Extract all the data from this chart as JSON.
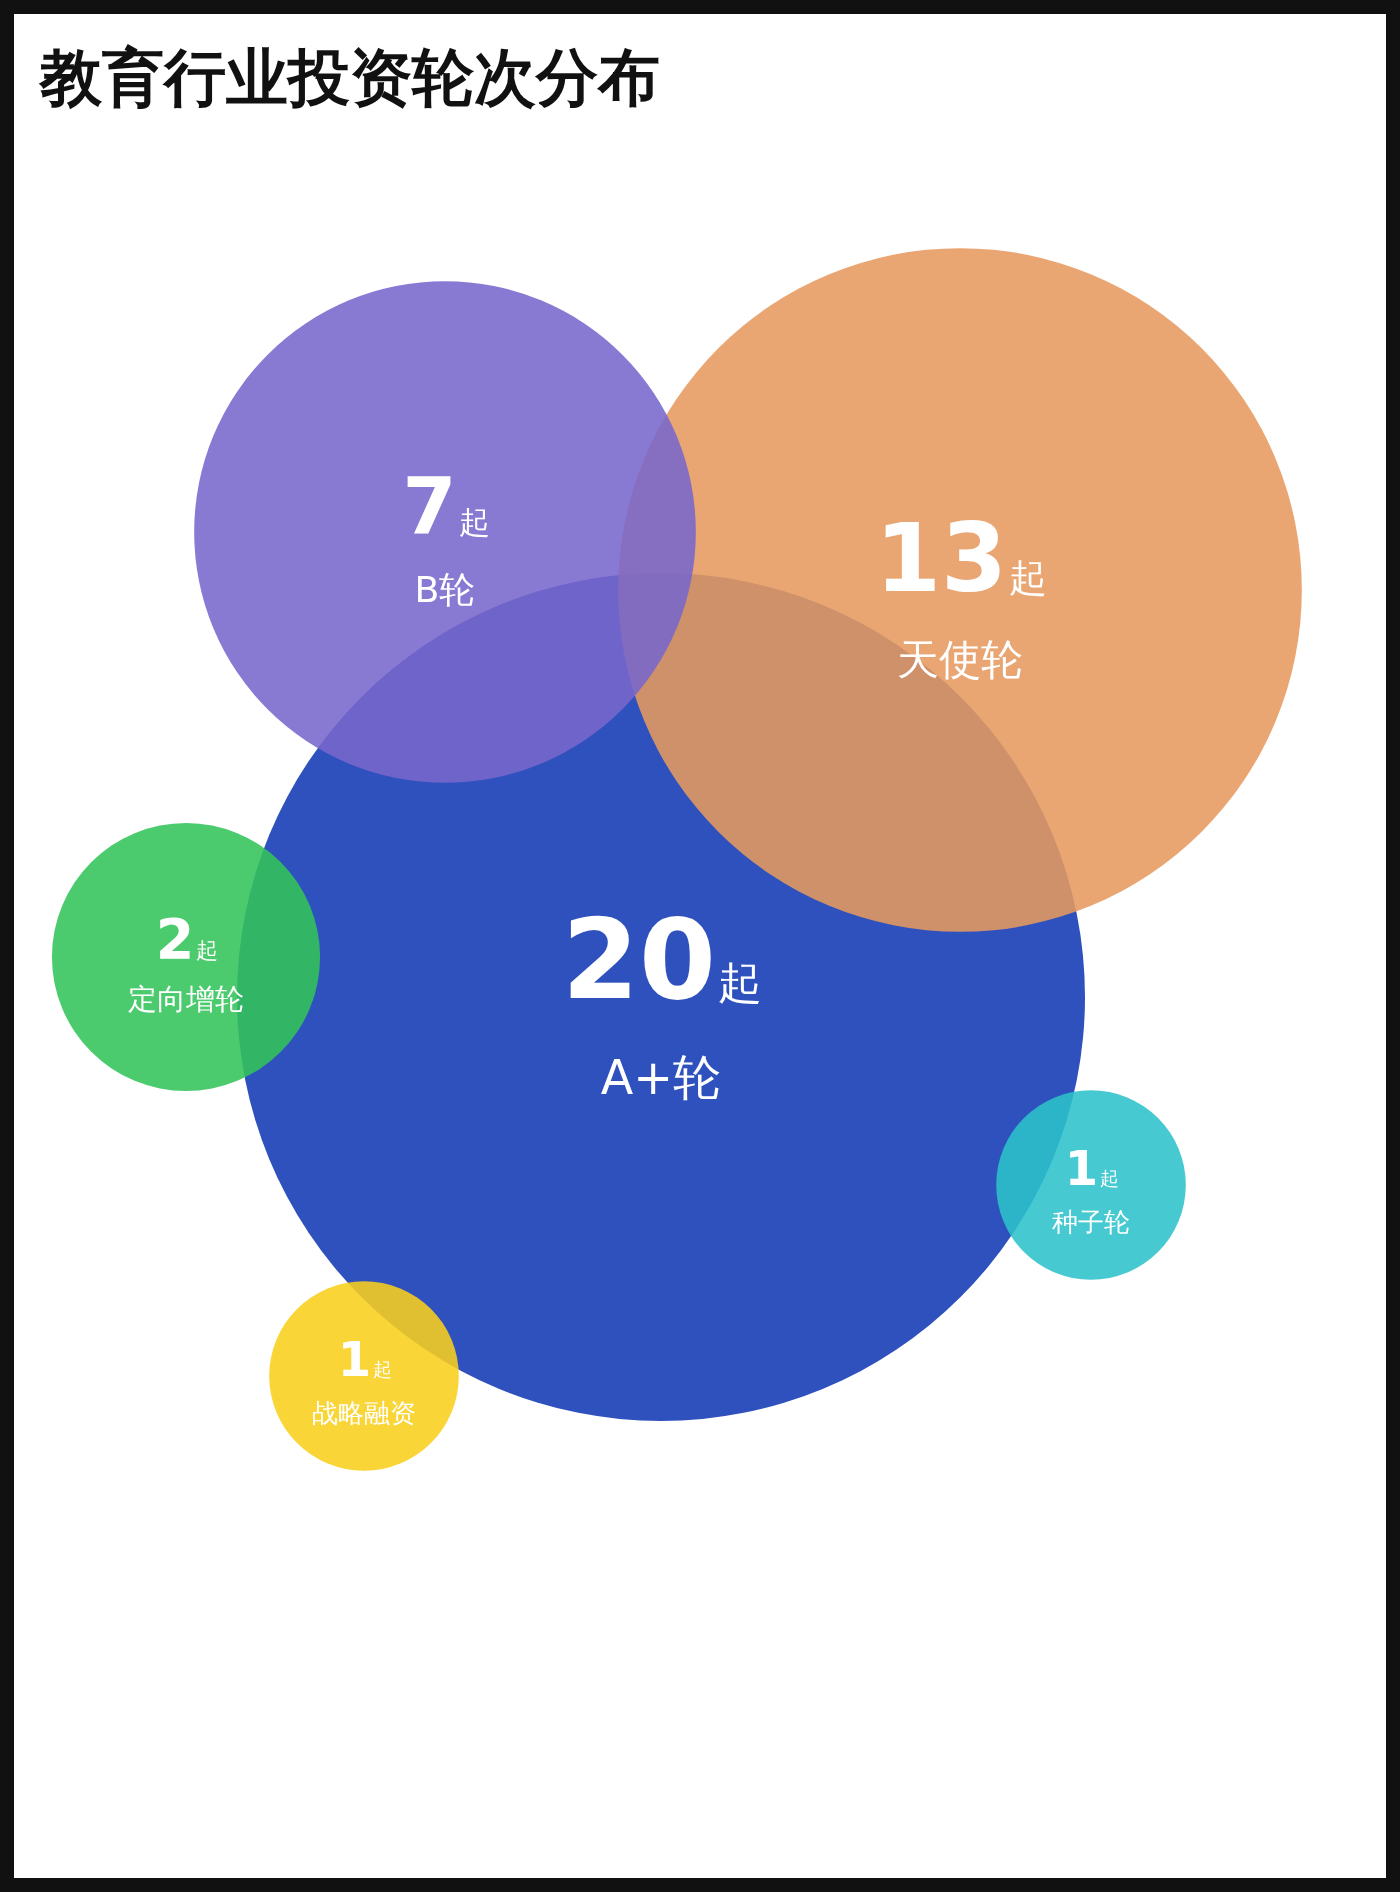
{
  "chart_data": {
    "type": "other",
    "title": "教育行业投资轮次分布",
    "categories": [
      "A+轮",
      "天使轮",
      "B轮",
      "定向增轮",
      "种子轮",
      "战略融资"
    ],
    "values": [
      20,
      13,
      7,
      2,
      1,
      1
    ],
    "value_labels": [
      "20起",
      "13起",
      "7起",
      "2起",
      "1起",
      "1起"
    ],
    "colors": [
      "#2e51be",
      "#e69a5f",
      "#7766cc",
      "#33c45a",
      "#2cc2ca",
      "#f9cf1c"
    ]
  }
}
